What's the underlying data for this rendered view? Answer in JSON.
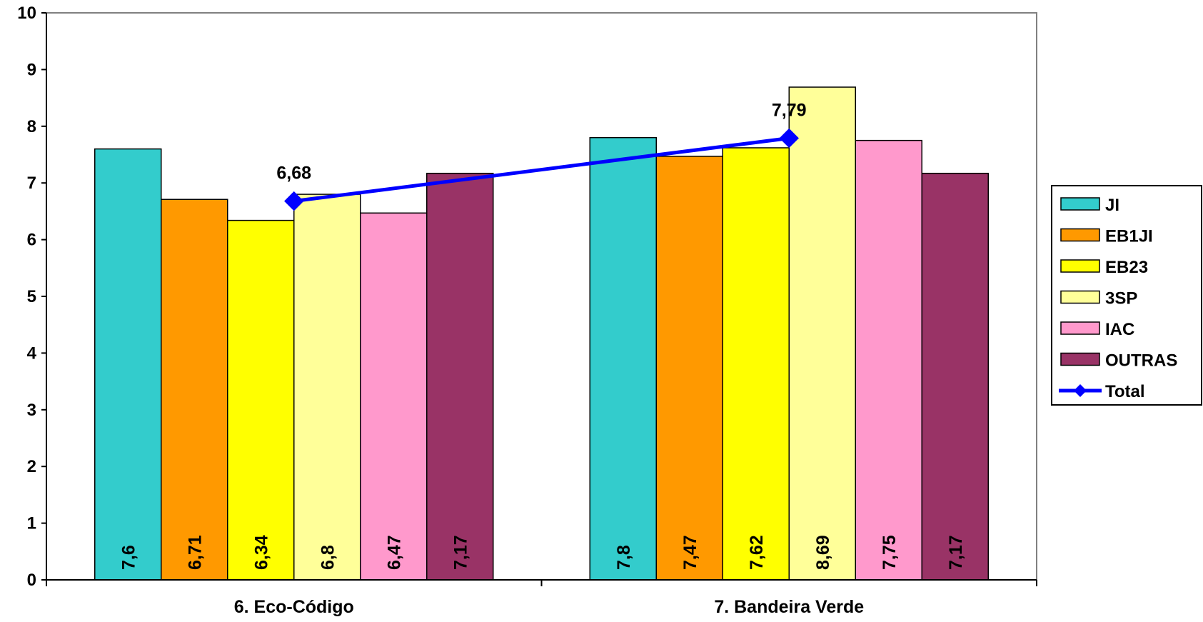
{
  "chart_data": {
    "type": "bar",
    "categories": [
      "6. Eco-Código",
      "7. Bandeira Verde"
    ],
    "series": [
      {
        "name": "JI",
        "values": [
          7.6,
          7.8
        ],
        "labels": [
          "7,6",
          "7,8"
        ],
        "color": "#33CCCC"
      },
      {
        "name": "EB1JI",
        "values": [
          6.71,
          7.47
        ],
        "labels": [
          "6,71",
          "7,47"
        ],
        "color": "#FF9900"
      },
      {
        "name": "EB23",
        "values": [
          6.34,
          7.62
        ],
        "labels": [
          "6,34",
          "7,62"
        ],
        "color": "#FFFF00"
      },
      {
        "name": "3SP",
        "values": [
          6.8,
          8.69
        ],
        "labels": [
          "6,8",
          "8,69"
        ],
        "color": "#FFFF99"
      },
      {
        "name": "IAC",
        "values": [
          6.47,
          7.75
        ],
        "labels": [
          "6,47",
          "7,75"
        ],
        "color": "#FF99CC"
      },
      {
        "name": "OUTRAS",
        "values": [
          7.17,
          7.17
        ],
        "labels": [
          "7,17",
          "7,17"
        ],
        "color": "#993366"
      }
    ],
    "line_series": {
      "name": "Total",
      "values": [
        6.68,
        7.79
      ],
      "labels": [
        "6,68",
        "7,79"
      ],
      "color": "#0000FF",
      "marker": "diamond"
    },
    "ylim": [
      0,
      10
    ],
    "yticks": [
      "0",
      "1",
      "2",
      "3",
      "4",
      "5",
      "6",
      "7",
      "8",
      "9",
      "10"
    ],
    "grid": false,
    "legend_position": "right"
  }
}
